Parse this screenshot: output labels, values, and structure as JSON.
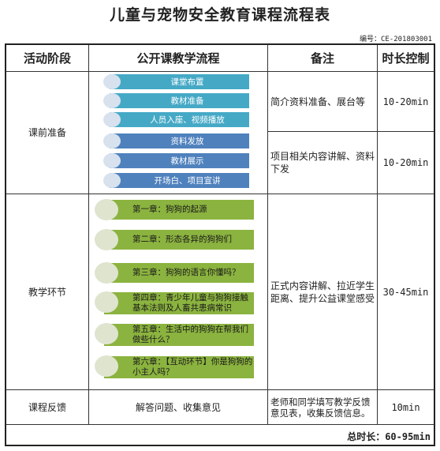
{
  "title": "儿童与宠物安全教育课程流程表",
  "code": "编号：CE-201803001",
  "headers": {
    "stage": "活动阶段",
    "flow": "公开课教学流程",
    "note": "备注",
    "duration": "时长控制"
  },
  "prep": {
    "stage": "课前准备",
    "group1": {
      "steps": [
        "课堂布置",
        "教材准备",
        "人员入座、视频播放"
      ],
      "note": "简介资料准备、展台等",
      "duration": "10-20min"
    },
    "group2": {
      "steps": [
        "资料发放",
        "教材展示",
        "开场白、项目宣讲"
      ],
      "note": "项目相关内容讲解、资料下发",
      "duration": "10-20min"
    }
  },
  "teach": {
    "stage": "教学环节",
    "chapters": [
      "第一章：狗狗的起源",
      "第二章：形态各异的狗狗们",
      "第三章：狗狗的语言你懂吗？",
      "第四章：青少年儿童与狗狗接触基本法则及人畜共患病常识",
      "第五章：生活中的狗狗在帮我们做些什么？",
      "第六章：【互动环节】你是狗狗的小主人吗？"
    ],
    "note": "正式内容讲解、拉近学生距离、提升公益课堂感受",
    "duration": "30-45min"
  },
  "feedback": {
    "stage": "课程反馈",
    "flow": "解答问题、收集意见",
    "note": "老师和同学填写教学反馈意见表，收集反馈信息。",
    "duration": "10min"
  },
  "total": "总时长：60-95min",
  "colors": {
    "blue_step": "#45a9c6",
    "dark_blue_step": "#4f81bd",
    "green_step": "#8bb33f"
  }
}
